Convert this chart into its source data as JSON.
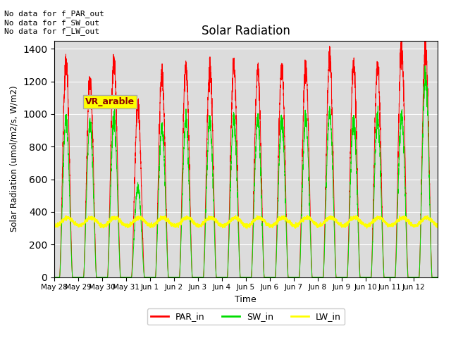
{
  "title": "Solar Radiation",
  "ylabel": "Solar Radiation (umol/m2/s, W/m2)",
  "xlabel": "Time",
  "ylim": [
    0,
    1450
  ],
  "bg_color": "#dcdcdc",
  "annotations_text": "No data for f_PAR_out\nNo data for f_SW_out\nNo data for f_LW_out",
  "vr_label": "VR_arable",
  "xtick_labels": [
    "May 28",
    "May 29",
    "May 30",
    "May 31",
    "Jun 1",
    "Jun 2",
    "Jun 3",
    "Jun 4",
    "Jun 5",
    "Jun 6",
    "Jun 7",
    "Jun 8",
    "Jun 9",
    "Jun 10",
    "Jun 11",
    "Jun 12"
  ],
  "par_peaks": [
    1310,
    1215,
    1320,
    1045,
    1240,
    1295,
    1285,
    1300,
    1270,
    1280,
    1290,
    1355,
    1300,
    1295,
    1395,
    1400
  ],
  "sw_peaks": [
    970,
    950,
    960,
    550,
    920,
    960,
    960,
    975,
    960,
    960,
    970,
    1010,
    960,
    970,
    990,
    1240
  ],
  "lw_base": 340,
  "lw_amplitude": 25,
  "colors": {
    "PAR_in": "#ff0000",
    "SW_in": "#00dd00",
    "LW_in": "#ffff00"
  },
  "n_points_per_day": 288,
  "n_days": 16
}
